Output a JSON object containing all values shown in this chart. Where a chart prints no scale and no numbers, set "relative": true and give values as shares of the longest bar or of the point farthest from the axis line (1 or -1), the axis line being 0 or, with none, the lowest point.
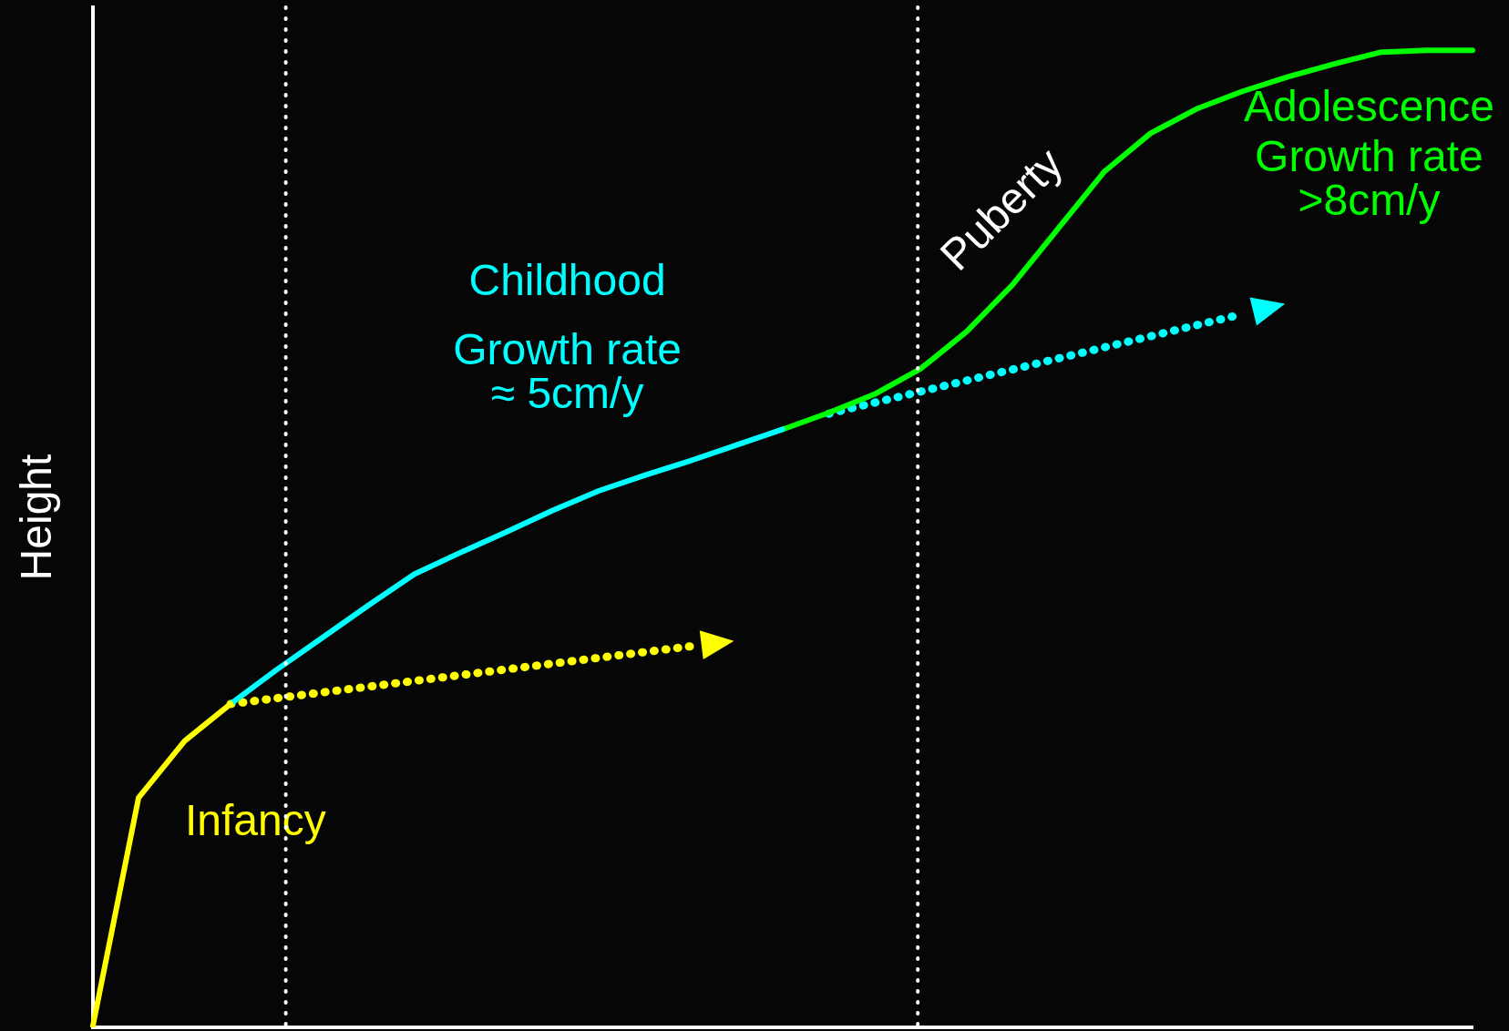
{
  "chart_data": {
    "type": "line",
    "relative": true,
    "ylabel": "Height",
    "grid": false,
    "legend": false,
    "tick_labels": false,
    "marker": "none",
    "categories": [
      null,
      null,
      null,
      null,
      null,
      null,
      null,
      null,
      null,
      null,
      null,
      null,
      null,
      null,
      null,
      null,
      null,
      null,
      null,
      null,
      null,
      null,
      null,
      null,
      null,
      null,
      null,
      null,
      null,
      null,
      null
    ],
    "series": [
      {
        "color": "#ffff00",
        "values": [
          0,
          0.235,
          0.293,
          0.331,
          null,
          null,
          null,
          null,
          null,
          null,
          null,
          null,
          null,
          null,
          null,
          null,
          null,
          null,
          null,
          null,
          null,
          null,
          null,
          null,
          null,
          null,
          null,
          null,
          null,
          null,
          null
        ]
      },
      {
        "color": "#00ffff",
        "values": [
          null,
          null,
          null,
          0.331,
          0.366,
          0.399,
          0.432,
          0.464,
          0.486,
          0.507,
          0.529,
          0.549,
          0.565,
          0.58,
          0.596,
          0.612,
          null,
          null,
          null,
          null,
          null,
          null,
          null,
          null,
          null,
          null,
          null,
          null,
          null,
          null,
          null
        ]
      },
      {
        "color": "#00ff00",
        "values": [
          null,
          null,
          null,
          null,
          null,
          null,
          null,
          null,
          null,
          null,
          null,
          null,
          null,
          null,
          null,
          0.612,
          0.629,
          0.648,
          0.674,
          0.712,
          0.76,
          0.818,
          0.876,
          0.915,
          0.94,
          0.958,
          0.973,
          0.986,
          0.998,
          1.0,
          1.0
        ]
      },
      {
        "color": "#ffff00",
        "line_style": "dotted",
        "values": [
          null,
          null,
          null,
          0.331,
          null,
          null,
          null,
          null,
          null,
          null,
          null,
          null,
          null,
          0.39,
          null,
          null,
          null,
          null,
          null,
          null,
          null,
          null,
          null,
          null,
          null,
          null,
          null,
          null,
          null,
          null,
          null
        ]
      },
      {
        "color": "#00ffff",
        "line_style": "dotted",
        "values": [
          null,
          null,
          null,
          null,
          null,
          null,
          null,
          null,
          null,
          null,
          null,
          null,
          null,
          null,
          null,
          null,
          0.628,
          null,
          null,
          null,
          null,
          null,
          null,
          null,
          null,
          0.73,
          null,
          null,
          null,
          null,
          null
        ]
      }
    ],
    "annotations": [
      "Infancy",
      "Childhood",
      "Growth rate\n≈ 5cm/y",
      "Puberty",
      "Adolescence",
      "Growth rate\n>8cm/y"
    ]
  }
}
